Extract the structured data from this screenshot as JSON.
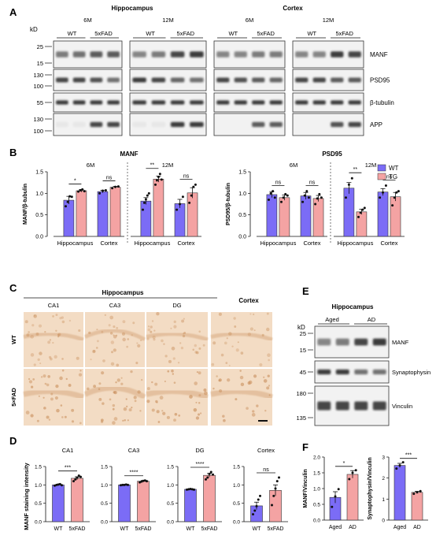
{
  "colors": {
    "wt": "#7b6cf6",
    "tg": "#f4a3a3",
    "stain_bg": "#f3dcc4",
    "stain_cell": "#c98f5c",
    "blot_band": "#1a1a1a"
  },
  "panel_a": {
    "letter": "A",
    "kd": "kD",
    "hippocampus": "Hippocampus",
    "cortex": "Cortex",
    "age_6m": "6M",
    "age_12m": "12M",
    "wt": "WT",
    "fad": "5xFAD",
    "proteins": [
      "MANF",
      "PSD95",
      "β-tubulin",
      "APP"
    ],
    "mw_rows": [
      [
        "25",
        "15"
      ],
      [
        "130",
        "100"
      ],
      [
        "55"
      ],
      [
        "130",
        "100"
      ]
    ],
    "band_intensity": [
      [
        [
          0.55,
          0.6,
          0.7,
          0.7
        ],
        [
          0.5,
          0.55,
          0.8,
          0.85
        ],
        [
          0.5,
          0.5,
          0.55,
          0.55
        ],
        [
          0.5,
          0.5,
          0.85,
          0.8
        ]
      ],
      [
        [
          0.8,
          0.8,
          0.75,
          0.6
        ],
        [
          0.85,
          0.8,
          0.65,
          0.6
        ],
        [
          0.8,
          0.75,
          0.7,
          0.65
        ],
        [
          0.8,
          0.8,
          0.7,
          0.7
        ]
      ],
      [
        [
          0.85,
          0.85,
          0.85,
          0.85
        ],
        [
          0.85,
          0.85,
          0.85,
          0.85
        ],
        [
          0.85,
          0.85,
          0.85,
          0.85
        ],
        [
          0.85,
          0.85,
          0.85,
          0.85
        ]
      ],
      [
        [
          0.05,
          0.05,
          0.8,
          0.8
        ],
        [
          0.05,
          0.05,
          0.85,
          0.85
        ],
        [
          0.02,
          0.02,
          0.7,
          0.7
        ],
        [
          0.02,
          0.02,
          0.75,
          0.8
        ]
      ]
    ]
  },
  "panel_b": {
    "letter": "B",
    "legend": {
      "wt": "WT",
      "tg": "TG"
    },
    "charts": [
      {
        "title": "MANF",
        "ylabel": "MANF/β-tubulin",
        "ylim": [
          0,
          1.5
        ],
        "ticks": [
          "0.0",
          "0.5",
          "1.0",
          "1.5"
        ],
        "groups": [
          {
            "age": "6M",
            "regions": [
              {
                "name": "Hippocampus",
                "wt": 0.84,
                "tg": 1.06,
                "wt_err": 0.09,
                "tg_err": 0.03,
                "sig": "*",
                "wt_pts": [
                  0.7,
                  0.8,
                  0.93,
                  0.92
                ],
                "tg_pts": [
                  1.04,
                  1.07,
                  1.09,
                  1.05
                ]
              },
              {
                "name": "Cortex",
                "wt": 1.04,
                "tg": 1.14,
                "wt_err": 0.03,
                "tg_err": 0.02,
                "sig": "ns",
                "wt_pts": [
                  1.0,
                  1.06,
                  1.07
                ],
                "tg_pts": [
                  1.12,
                  1.15,
                  1.16
                ]
              }
            ]
          },
          {
            "age": "12M",
            "regions": [
              {
                "name": "Hippocampus",
                "wt": 0.82,
                "tg": 1.33,
                "wt_err": 0.08,
                "tg_err": 0.07,
                "sig": "**",
                "wt_pts": [
                  0.62,
                  0.78,
                  0.86,
                  0.95,
                  1.0
                ],
                "tg_pts": [
                  1.2,
                  1.3,
                  1.38,
                  1.45,
                  1.32
                ]
              },
              {
                "name": "Cortex",
                "wt": 0.76,
                "tg": 1.01,
                "wt_err": 0.1,
                "tg_err": 0.12,
                "sig": "ns",
                "wt_pts": [
                  0.62,
                  0.75,
                  0.92
                ],
                "tg_pts": [
                  0.78,
                  0.95,
                  1.15,
                  1.2
                ]
              }
            ]
          }
        ]
      },
      {
        "title": "PSD95",
        "ylabel": "PSD95/β-tubulin",
        "ylim": [
          0,
          1.5
        ],
        "ticks": [
          "0.0",
          "0.5",
          "1.0",
          "1.5"
        ],
        "groups": [
          {
            "age": "6M",
            "regions": [
              {
                "name": "Hippocampus",
                "wt": 0.97,
                "tg": 0.9,
                "wt_err": 0.07,
                "tg_err": 0.06,
                "sig": "ns",
                "wt_pts": [
                  0.85,
                  1.0,
                  1.05,
                  0.9
                ],
                "tg_pts": [
                  0.8,
                  0.9,
                  0.98,
                  0.95
                ]
              },
              {
                "name": "Cortex",
                "wt": 0.94,
                "tg": 0.88,
                "wt_err": 0.08,
                "tg_err": 0.07,
                "sig": "ns",
                "wt_pts": [
                  0.8,
                  0.95,
                  1.05,
                  0.9
                ],
                "tg_pts": [
                  0.75,
                  0.88,
                  0.98,
                  0.9
                ]
              }
            ]
          },
          {
            "age": "12M",
            "regions": [
              {
                "name": "Hippocampus",
                "wt": 1.12,
                "tg": 0.57,
                "wt_err": 0.13,
                "tg_err": 0.06,
                "sig": "**",
                "wt_pts": [
                  0.9,
                  1.2,
                  1.35
                ],
                "tg_pts": [
                  0.45,
                  0.55,
                  0.62,
                  0.66
                ]
              },
              {
                "name": "Cortex",
                "wt": 1.03,
                "tg": 0.92,
                "wt_err": 0.08,
                "tg_err": 0.1,
                "sig": "ns",
                "wt_pts": [
                  0.9,
                  1.02,
                  1.18
                ],
                "tg_pts": [
                  0.72,
                  0.9,
                  1.02,
                  1.05
                ]
              }
            ]
          }
        ]
      }
    ]
  },
  "panel_c": {
    "letter": "C",
    "hippocampus": "Hippocampus",
    "cortex": "Cortex",
    "columns": [
      "CA1",
      "CA3",
      "DG"
    ],
    "rows": [
      "WT",
      "5×FAD"
    ]
  },
  "panel_d": {
    "letter": "D",
    "ylabel": "MANF staining intensity",
    "charts": [
      {
        "title": "CA1",
        "ylim": [
          0,
          1.5
        ],
        "ticks": [
          "0.0",
          "0.5",
          "1.0",
          "1.5"
        ],
        "wt": 1.0,
        "tg": 1.18,
        "wt_err": 0.02,
        "tg_err": 0.04,
        "sig": "***",
        "wt_pts": [
          0.98,
          1.0,
          1.01,
          1.02,
          0.99
        ],
        "tg_pts": [
          1.1,
          1.15,
          1.2,
          1.25,
          1.22
        ],
        "xlabels": [
          "WT",
          "5xFAD"
        ]
      },
      {
        "title": "CA3",
        "ylim": [
          0,
          1.5
        ],
        "ticks": [
          "0.0",
          "0.5",
          "1.0",
          "1.5"
        ],
        "wt": 1.0,
        "tg": 1.1,
        "wt_err": 0.01,
        "tg_err": 0.02,
        "sig": "****",
        "wt_pts": [
          0.99,
          1.0,
          1.0,
          1.01,
          1.0
        ],
        "tg_pts": [
          1.07,
          1.09,
          1.11,
          1.12,
          1.1
        ],
        "xlabels": [
          "WT",
          "5xFAD"
        ]
      },
      {
        "title": "DG",
        "ylim": [
          0,
          1.5
        ],
        "ticks": [
          "0.0",
          "0.5",
          "1.0",
          "1.5"
        ],
        "wt": 0.88,
        "tg": 1.26,
        "wt_err": 0.01,
        "tg_err": 0.05,
        "sig": "****",
        "wt_pts": [
          0.87,
          0.88,
          0.89,
          0.88,
          0.87
        ],
        "tg_pts": [
          1.15,
          1.2,
          1.3,
          1.35,
          1.28
        ],
        "xlabels": [
          "WT",
          "5xFAD"
        ]
      },
      {
        "title": "Cortex",
        "ylim": [
          0,
          1.5
        ],
        "ticks": [
          "0.0",
          "0.5",
          "1.0",
          "1.5"
        ],
        "wt": 0.43,
        "tg": 0.85,
        "wt_err": 0.1,
        "tg_err": 0.15,
        "sig": "ns",
        "wt_pts": [
          0.2,
          0.3,
          0.42,
          0.6,
          0.7
        ],
        "tg_pts": [
          0.45,
          0.7,
          0.9,
          1.1,
          1.2
        ],
        "xlabels": [
          "WT",
          "5xFAD"
        ]
      }
    ]
  },
  "panel_e": {
    "letter": "E",
    "title": "Hippocampus",
    "kd": "kD",
    "aged": "Aged",
    "ad": "AD",
    "proteins": [
      "MANF",
      "Synaptophysin",
      "Vinculin"
    ],
    "mw_rows": [
      [
        "25",
        "15"
      ],
      [
        "45"
      ],
      [
        "180",
        "135"
      ]
    ],
    "band_intensity": [
      [
        0.5,
        0.55,
        0.8,
        0.85
      ],
      [
        0.85,
        0.85,
        0.6,
        0.6
      ],
      [
        0.8,
        0.8,
        0.8,
        0.8
      ]
    ]
  },
  "panel_f": {
    "letter": "F",
    "charts": [
      {
        "ylabel": "MANF/Vinculin",
        "ylim": [
          0,
          2.0
        ],
        "ticks": [
          "0.0",
          "0.5",
          "1.0",
          "1.5",
          "2.0"
        ],
        "xlabels": [
          "Aged",
          "AD"
        ],
        "wt": 0.72,
        "tg": 1.45,
        "wt_err": 0.18,
        "tg_err": 0.12,
        "sig": "*",
        "wt_pts": [
          0.42,
          0.75,
          0.98
        ],
        "tg_pts": [
          1.3,
          1.5,
          1.58
        ]
      },
      {
        "ylabel": "Synaptophysin/Vinculin",
        "ylim": [
          0,
          3
        ],
        "ticks": [
          "0",
          "1",
          "2",
          "3"
        ],
        "xlabels": [
          "Aged",
          "AD"
        ],
        "wt": 2.6,
        "tg": 1.32,
        "wt_err": 0.1,
        "tg_err": 0.05,
        "sig": "***",
        "wt_pts": [
          2.45,
          2.6,
          2.75
        ],
        "tg_pts": [
          1.25,
          1.32,
          1.38
        ]
      }
    ]
  }
}
